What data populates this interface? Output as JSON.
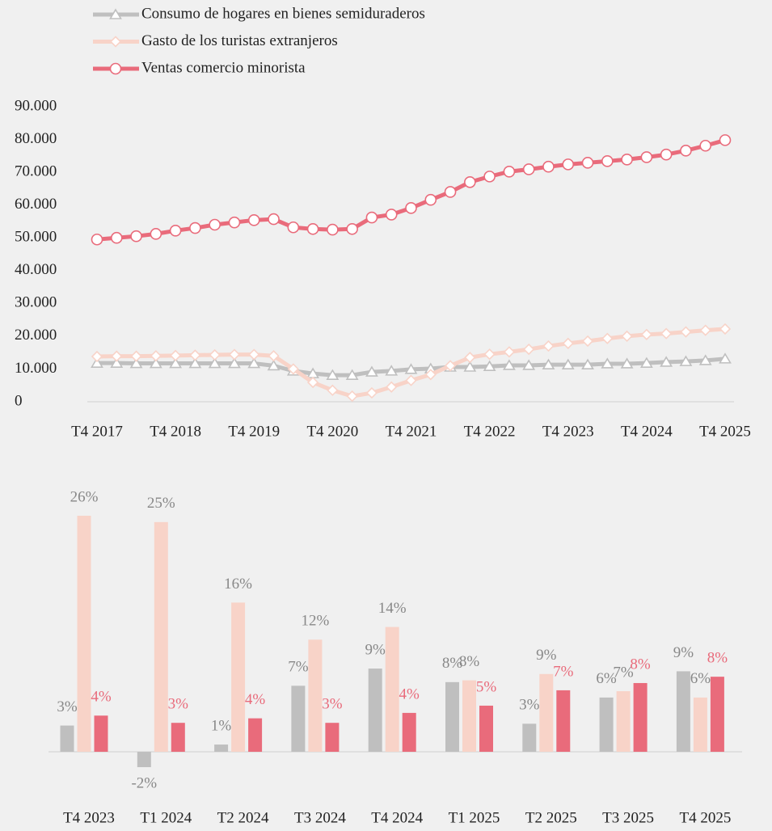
{
  "chart_data": [
    {
      "type": "line",
      "categories": [
        "T4 2017",
        null,
        null,
        null,
        "T4 2018",
        null,
        null,
        null,
        "T4 2019",
        null,
        null,
        null,
        "T4 2020",
        null,
        null,
        null,
        "T4 2021",
        null,
        null,
        null,
        "T4 2022",
        null,
        null,
        null,
        "T4 2023",
        null,
        null,
        null,
        "T4 2024",
        null,
        null,
        null,
        "T4 2025"
      ],
      "series": [
        {
          "name": "Consumo de hogares en bienes semiduraderos",
          "color": "#bfbfbf",
          "marker": "triangle",
          "values": [
            11800,
            11800,
            11700,
            11700,
            11700,
            11700,
            11700,
            11700,
            11700,
            11000,
            9400,
            8600,
            8100,
            8100,
            9100,
            9400,
            9900,
            10100,
            10600,
            10600,
            10800,
            11100,
            11100,
            11300,
            11300,
            11300,
            11600,
            11600,
            11800,
            12100,
            12300,
            12600,
            13100
          ]
        },
        {
          "name": "Gasto de los turistas extranjeros",
          "color": "#f8d3c8",
          "marker": "diamond",
          "values": [
            13800,
            13900,
            13900,
            14000,
            14100,
            14200,
            14300,
            14400,
            14400,
            14000,
            10000,
            5900,
            3500,
            1700,
            2700,
            4500,
            6500,
            8300,
            11000,
            13500,
            14500,
            15200,
            16000,
            17000,
            17800,
            18500,
            19300,
            20000,
            20500,
            20800,
            21300,
            21800,
            22200
          ]
        },
        {
          "name": "Ventas comercio minorista",
          "color": "#e96b7b",
          "marker": "circle",
          "values": [
            49500,
            50000,
            50500,
            51200,
            52200,
            53000,
            54000,
            54700,
            55400,
            55700,
            53200,
            52700,
            52500,
            52700,
            56200,
            57100,
            59100,
            61600,
            64000,
            67000,
            68700,
            70200,
            70900,
            71700,
            72400,
            72900,
            73400,
            73900,
            74600,
            75400,
            76600,
            78100,
            79800
          ]
        }
      ],
      "ylim": [
        0,
        90000
      ],
      "yticks": [
        0,
        {
          "value": 10000,
          "label": "10.000"
        },
        {
          "value": 20000,
          "label": "20.000"
        },
        {
          "value": 30000,
          "label": "30.000"
        },
        {
          "value": 40000,
          "label": "40.000"
        },
        {
          "value": 50000,
          "label": "50.000"
        },
        {
          "value": 60000,
          "label": "60.000"
        },
        {
          "value": 70000,
          "label": "70.000"
        },
        {
          "value": 80000,
          "label": "80.000"
        },
        {
          "value": 90000,
          "label": "90.000"
        }
      ],
      "legend": "top"
    },
    {
      "type": "bar",
      "categories": [
        "T4 2023",
        "T1 2024",
        "T2 2024",
        "T3 2024",
        "T4 2024",
        "T1 2025",
        "T2 2025",
        "T3 2025",
        "T4 2025"
      ],
      "series": [
        {
          "color": "#bfbfbf",
          "values": [
            2.9,
            -1.7,
            0.8,
            7.3,
            9.2,
            7.7,
            3.1,
            6.0,
            8.9
          ],
          "value_labels": [
            "3%",
            "-2%",
            "1%",
            "7%",
            "9%",
            "8%",
            "3%",
            "6%",
            "9%"
          ]
        },
        {
          "color": "#f8d3c8",
          "values": [
            26.1,
            25.4,
            16.5,
            12.4,
            13.8,
            7.9,
            8.6,
            6.7,
            6.0
          ],
          "value_labels": [
            "26%",
            "25%",
            "16%",
            "12%",
            "14%",
            "8%",
            "9%",
            "7%",
            "6%"
          ]
        },
        {
          "color": "#e96b7b",
          "values": [
            4.0,
            3.2,
            3.7,
            3.2,
            4.3,
            5.1,
            6.8,
            7.6,
            8.3
          ],
          "value_labels": [
            "4%",
            "3%",
            "4%",
            "3%",
            "4%",
            "5%",
            "7%",
            "8%",
            "8%"
          ]
        }
      ]
    }
  ]
}
